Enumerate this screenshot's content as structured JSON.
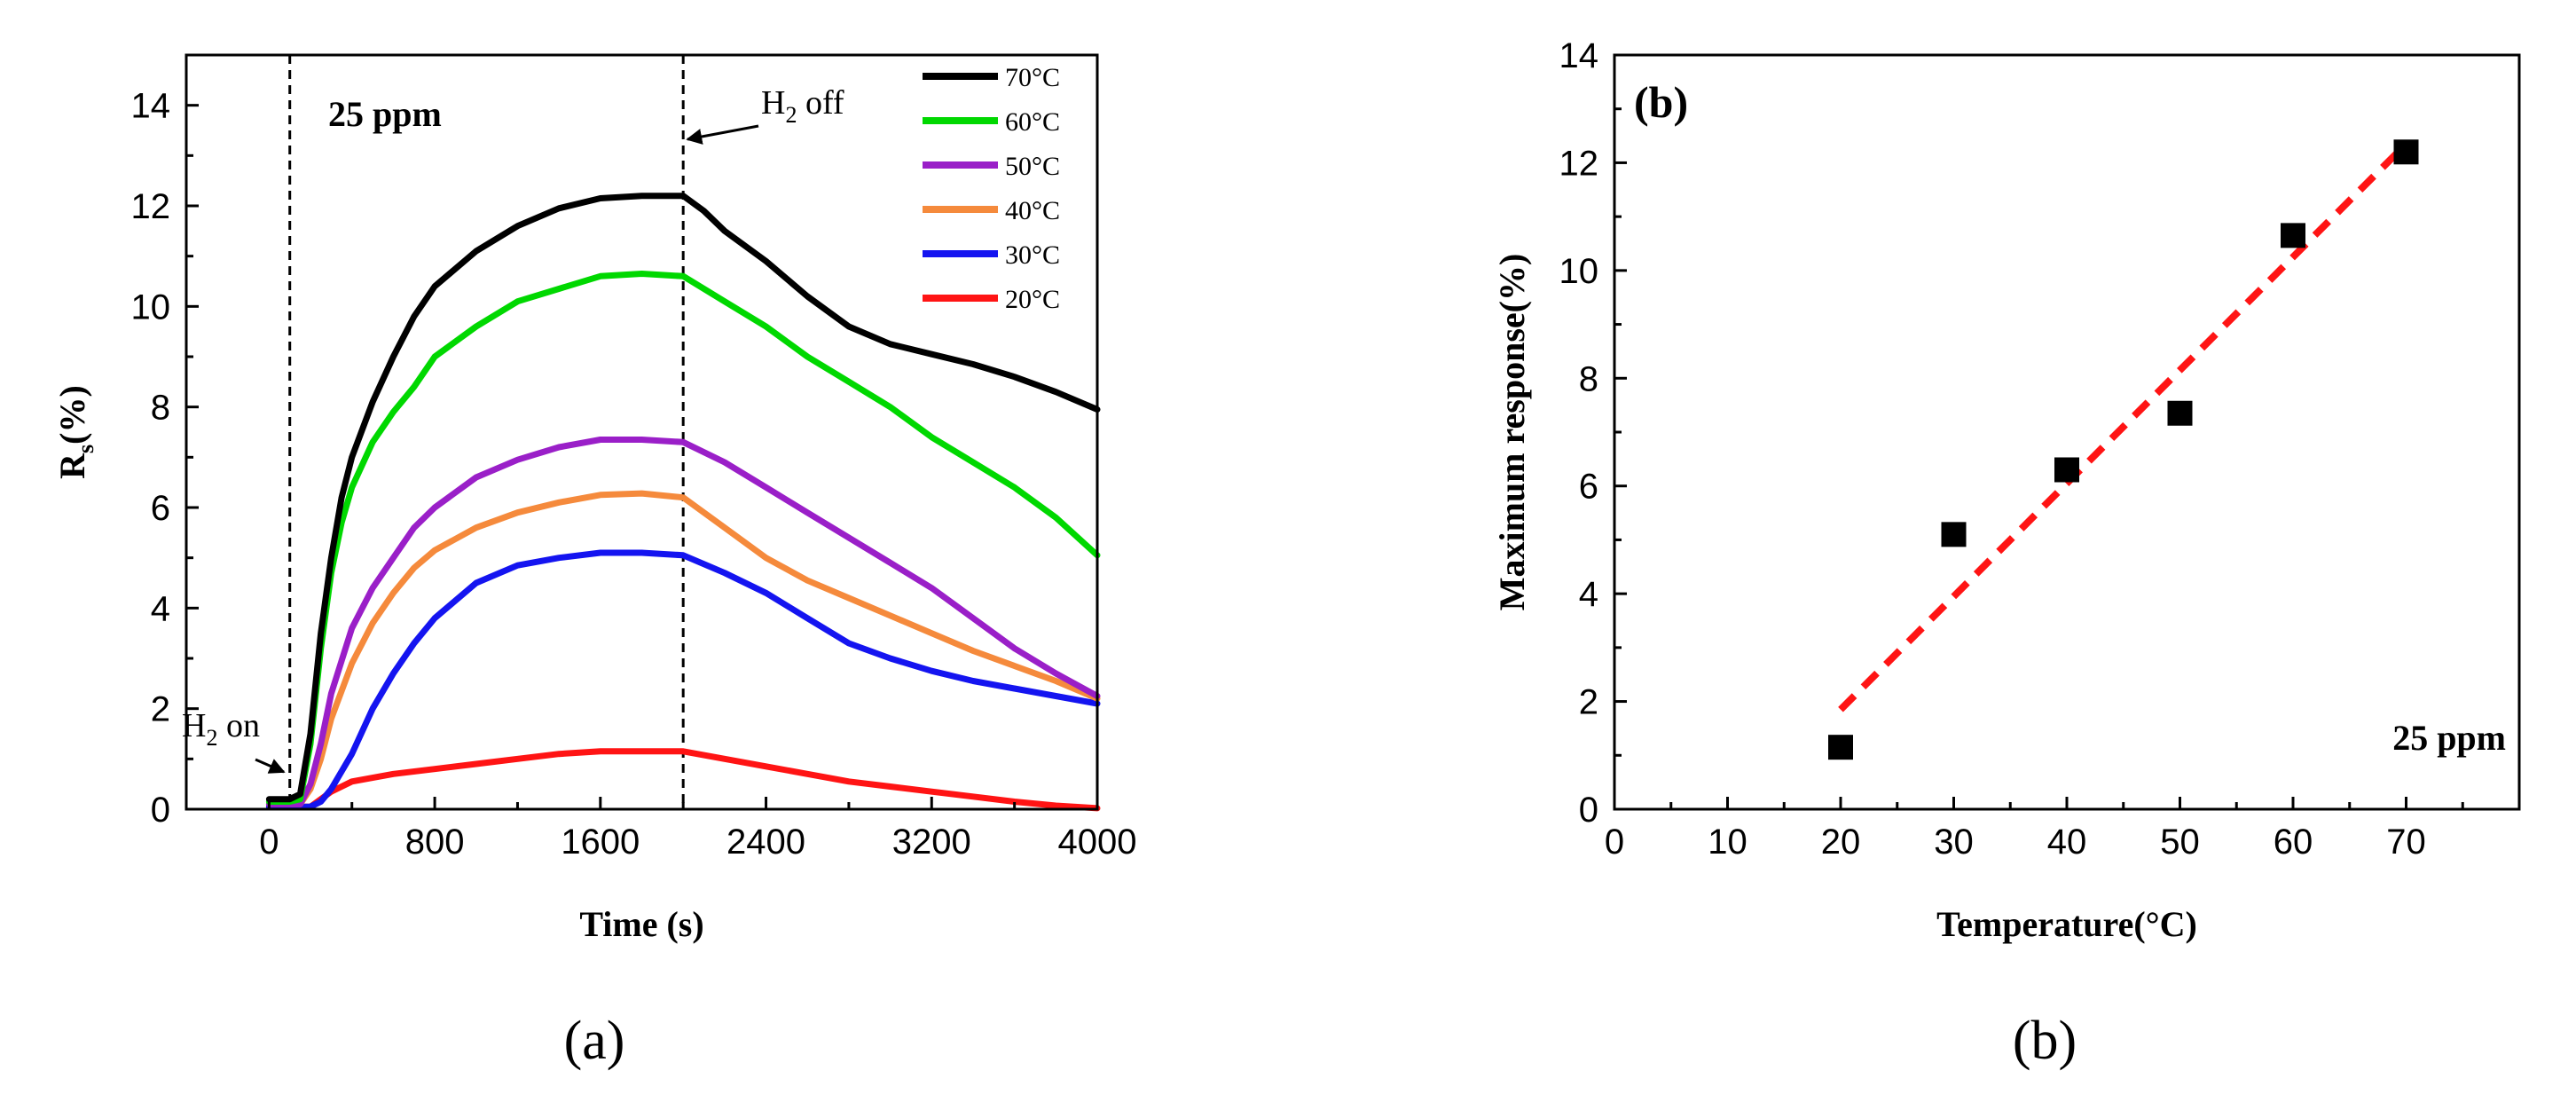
{
  "chart_data": [
    {
      "panel": "a",
      "type": "line",
      "xlabel": "Time (s)",
      "ylabel": "R",
      "ylabel_sub": "s",
      "ylabel_tail": "(%)",
      "xlim": [
        -400,
        4000
      ],
      "ylim": [
        0,
        15
      ],
      "xticks": [
        0,
        800,
        1600,
        2400,
        3200,
        4000
      ],
      "yticks": [
        0,
        2,
        4,
        6,
        8,
        10,
        12,
        14
      ],
      "concentration_label": "25 ppm",
      "gas_on": {
        "x": 100,
        "label": "H",
        "sub": "2",
        "tail": " on"
      },
      "gas_off": {
        "x": 2000,
        "label": "H",
        "sub": "2",
        "tail": " off"
      },
      "series": [
        {
          "name": "70°C",
          "color": "#000000",
          "points": [
            [
              0,
              0.2
            ],
            [
              100,
              0.2
            ],
            [
              150,
              0.3
            ],
            [
              200,
              1.5
            ],
            [
              250,
              3.5
            ],
            [
              300,
              5.0
            ],
            [
              350,
              6.2
            ],
            [
              400,
              7.0
            ],
            [
              500,
              8.1
            ],
            [
              600,
              9.0
            ],
            [
              700,
              9.8
            ],
            [
              800,
              10.4
            ],
            [
              1000,
              11.1
            ],
            [
              1200,
              11.6
            ],
            [
              1400,
              11.95
            ],
            [
              1600,
              12.15
            ],
            [
              1800,
              12.2
            ],
            [
              2000,
              12.2
            ],
            [
              2100,
              11.9
            ],
            [
              2200,
              11.5
            ],
            [
              2400,
              10.9
            ],
            [
              2600,
              10.2
            ],
            [
              2800,
              9.6
            ],
            [
              3000,
              9.25
            ],
            [
              3200,
              9.05
            ],
            [
              3400,
              8.85
            ],
            [
              3600,
              8.6
            ],
            [
              3800,
              8.3
            ],
            [
              4000,
              7.95
            ]
          ]
        },
        {
          "name": "60°C",
          "color": "#00d800",
          "points": [
            [
              0,
              0.15
            ],
            [
              100,
              0.15
            ],
            [
              150,
              0.2
            ],
            [
              200,
              1.3
            ],
            [
              250,
              3.2
            ],
            [
              300,
              4.7
            ],
            [
              350,
              5.7
            ],
            [
              400,
              6.4
            ],
            [
              500,
              7.3
            ],
            [
              600,
              7.9
            ],
            [
              700,
              8.4
            ],
            [
              800,
              9.0
            ],
            [
              1000,
              9.6
            ],
            [
              1200,
              10.1
            ],
            [
              1400,
              10.35
            ],
            [
              1600,
              10.6
            ],
            [
              1800,
              10.65
            ],
            [
              2000,
              10.6
            ],
            [
              2200,
              10.1
            ],
            [
              2400,
              9.6
            ],
            [
              2600,
              9.0
            ],
            [
              2800,
              8.5
            ],
            [
              3000,
              8.0
            ],
            [
              3200,
              7.4
            ],
            [
              3400,
              6.9
            ],
            [
              3600,
              6.4
            ],
            [
              3800,
              5.8
            ],
            [
              4000,
              5.05
            ]
          ]
        },
        {
          "name": "50°C",
          "color": "#9a1fc8",
          "points": [
            [
              0,
              0.1
            ],
            [
              150,
              0.1
            ],
            [
              200,
              0.5
            ],
            [
              250,
              1.3
            ],
            [
              300,
              2.3
            ],
            [
              400,
              3.6
            ],
            [
              500,
              4.4
            ],
            [
              600,
              5.0
            ],
            [
              700,
              5.6
            ],
            [
              800,
              6.0
            ],
            [
              1000,
              6.6
            ],
            [
              1200,
              6.95
            ],
            [
              1400,
              7.2
            ],
            [
              1600,
              7.35
            ],
            [
              1800,
              7.35
            ],
            [
              2000,
              7.3
            ],
            [
              2200,
              6.9
            ],
            [
              2400,
              6.4
            ],
            [
              2600,
              5.9
            ],
            [
              2800,
              5.4
            ],
            [
              3000,
              4.9
            ],
            [
              3200,
              4.4
            ],
            [
              3400,
              3.8
            ],
            [
              3600,
              3.2
            ],
            [
              3800,
              2.7
            ],
            [
              4000,
              2.25
            ]
          ]
        },
        {
          "name": "40°C",
          "color": "#f58a3c",
          "points": [
            [
              0,
              0.1
            ],
            [
              150,
              0.1
            ],
            [
              200,
              0.4
            ],
            [
              250,
              1.0
            ],
            [
              300,
              1.8
            ],
            [
              400,
              2.9
            ],
            [
              500,
              3.7
            ],
            [
              600,
              4.3
            ],
            [
              700,
              4.8
            ],
            [
              800,
              5.15
            ],
            [
              1000,
              5.6
            ],
            [
              1200,
              5.9
            ],
            [
              1400,
              6.1
            ],
            [
              1600,
              6.25
            ],
            [
              1800,
              6.28
            ],
            [
              2000,
              6.2
            ],
            [
              2200,
              5.6
            ],
            [
              2400,
              5.0
            ],
            [
              2600,
              4.55
            ],
            [
              2800,
              4.2
            ],
            [
              3000,
              3.85
            ],
            [
              3200,
              3.5
            ],
            [
              3400,
              3.15
            ],
            [
              3600,
              2.85
            ],
            [
              3800,
              2.55
            ],
            [
              4000,
              2.2
            ]
          ]
        },
        {
          "name": "30°C",
          "color": "#1414f0",
          "points": [
            [
              0,
              0.05
            ],
            [
              200,
              0.05
            ],
            [
              250,
              0.15
            ],
            [
              300,
              0.4
            ],
            [
              400,
              1.1
            ],
            [
              500,
              2.0
            ],
            [
              600,
              2.7
            ],
            [
              700,
              3.3
            ],
            [
              800,
              3.8
            ],
            [
              1000,
              4.5
            ],
            [
              1200,
              4.85
            ],
            [
              1400,
              5.0
            ],
            [
              1600,
              5.1
            ],
            [
              1800,
              5.1
            ],
            [
              2000,
              5.05
            ],
            [
              2200,
              4.7
            ],
            [
              2400,
              4.3
            ],
            [
              2600,
              3.8
            ],
            [
              2800,
              3.3
            ],
            [
              3000,
              3.0
            ],
            [
              3200,
              2.75
            ],
            [
              3400,
              2.55
            ],
            [
              3600,
              2.4
            ],
            [
              3800,
              2.25
            ],
            [
              4000,
              2.1
            ]
          ]
        },
        {
          "name": "20°C",
          "color": "#ff1414",
          "points": [
            [
              0,
              0.05
            ],
            [
              200,
              0.05
            ],
            [
              300,
              0.35
            ],
            [
              400,
              0.55
            ],
            [
              600,
              0.7
            ],
            [
              800,
              0.8
            ],
            [
              1000,
              0.9
            ],
            [
              1200,
              1.0
            ],
            [
              1400,
              1.1
            ],
            [
              1600,
              1.15
            ],
            [
              1800,
              1.15
            ],
            [
              2000,
              1.15
            ],
            [
              2200,
              1.0
            ],
            [
              2400,
              0.85
            ],
            [
              2600,
              0.7
            ],
            [
              2800,
              0.55
            ],
            [
              3000,
              0.45
            ],
            [
              3200,
              0.35
            ],
            [
              3400,
              0.25
            ],
            [
              3600,
              0.15
            ],
            [
              3800,
              0.07
            ],
            [
              4000,
              0.02
            ]
          ]
        }
      ],
      "caption": "(a)"
    },
    {
      "panel": "b",
      "type": "scatter",
      "title_label": "(b)",
      "xlabel": "Temperature(°C)",
      "ylabel": "Maximum response(%)",
      "xlim": [
        0,
        80
      ],
      "ylim": [
        0,
        14
      ],
      "xticks": [
        0,
        10,
        20,
        30,
        40,
        50,
        60,
        70
      ],
      "yticks": [
        0,
        2,
        4,
        6,
        8,
        10,
        12,
        14
      ],
      "x": [
        20,
        30,
        40,
        50,
        60,
        70
      ],
      "y": [
        1.15,
        5.1,
        6.3,
        7.35,
        10.65,
        12.2
      ],
      "fit_line": {
        "color": "#ff1414",
        "x": [
          20,
          70
        ],
        "y": [
          1.85,
          12.35
        ]
      },
      "concentration_label": "25 ppm",
      "caption": "(b)"
    }
  ]
}
